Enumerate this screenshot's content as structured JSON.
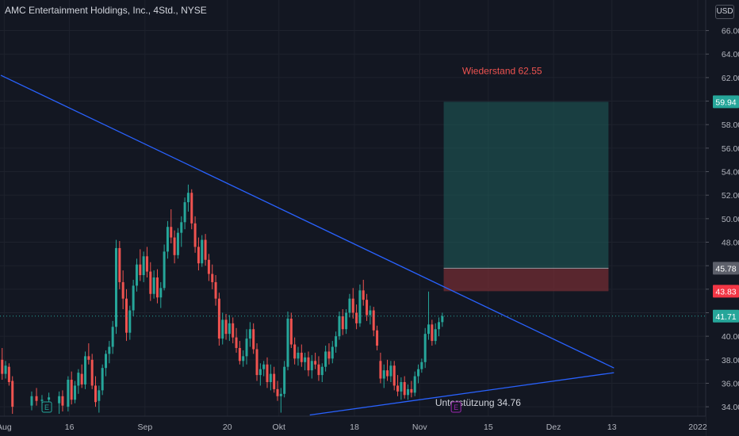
{
  "header": {
    "title": "AMC Entertainment Holdings, Inc., 4Std., NYSE",
    "currency": "USD"
  },
  "colors": {
    "up": "#26a69a",
    "down": "#ef5350",
    "trend": "#2962ff",
    "profit": "#1f5f5b",
    "loss": "#6b2a32"
  },
  "chart_data": {
    "type": "candlestick",
    "yaxis": {
      "ticks": [
        34,
        36,
        38,
        40,
        42,
        44,
        46,
        48,
        50,
        52,
        54,
        56,
        58,
        60,
        62,
        64,
        66
      ],
      "range": [
        33.2,
        68.6
      ]
    },
    "xaxis": {
      "range": [
        0,
        100
      ],
      "labels": [
        {
          "t": 0.5,
          "label": "Aug"
        },
        {
          "t": 10,
          "label": "16"
        },
        {
          "t": 21,
          "label": "Sep"
        },
        {
          "t": 33,
          "label": "20"
        },
        {
          "t": 40.5,
          "label": "Okt"
        },
        {
          "t": 51.5,
          "label": "18"
        },
        {
          "t": 61,
          "label": "Nov"
        },
        {
          "t": 71,
          "label": "15"
        },
        {
          "t": 80.5,
          "label": "Dez"
        },
        {
          "t": 89,
          "label": "13"
        },
        {
          "t": 101.5,
          "label": "2022"
        }
      ]
    },
    "price_badges": [
      {
        "value": 59.94,
        "label": "59.94",
        "kind": "profit"
      },
      {
        "value": 45.78,
        "label": "45.78",
        "kind": "entry"
      },
      {
        "value": 43.83,
        "label": "43.83",
        "kind": "stop"
      },
      {
        "value": 41.71,
        "label": "41.71",
        "kind": "last"
      }
    ],
    "annotations": [
      {
        "text": "Wiederstand 62.55",
        "t": 73,
        "y": 62.55,
        "color": "#ef5350"
      },
      {
        "text": "Unterstützung 34.76",
        "t": 69.5,
        "y": 34.35,
        "color": "#d1d4dc"
      }
    ],
    "trendlines": [
      {
        "points": [
          [
            0,
            62.2
          ],
          [
            89.3,
            37.3
          ]
        ]
      },
      {
        "points": [
          [
            45,
            33.3
          ],
          [
            89.3,
            36.9
          ]
        ]
      }
    ],
    "position_box": {
      "t_start": 64.5,
      "t_end": 88.5,
      "target": 59.94,
      "entry": 45.78,
      "stop": 43.83
    },
    "events": [
      {
        "t": 6.7,
        "label": "E",
        "color": "#26a69a"
      },
      {
        "t": 66.3,
        "label": "E",
        "color": "#9c27b0"
      }
    ],
    "candles": [
      [
        0.2,
        38.0,
        39.0,
        36.3,
        36.8
      ],
      [
        0.7,
        36.8,
        37.9,
        36.4,
        37.5
      ],
      [
        1.2,
        37.4,
        37.7,
        35.8,
        36.1
      ],
      [
        1.7,
        36.2,
        36.6,
        33.4,
        34.0
      ],
      [
        4.5,
        34.1,
        35.3,
        33.7,
        34.9
      ],
      [
        5.2,
        34.9,
        35.6,
        34.1,
        34.5
      ],
      [
        6.0,
        34.5,
        35.0,
        33.8,
        34.6
      ],
      [
        7.0,
        34.6,
        35.2,
        34.2,
        34.8
      ],
      [
        8.5,
        34.3,
        35.3,
        33.4,
        34.9
      ],
      [
        9.0,
        34.9,
        35.4,
        33.6,
        34.1
      ],
      [
        9.8,
        34.0,
        36.6,
        33.6,
        36.3
      ],
      [
        10.3,
        36.3,
        37.0,
        34.2,
        34.6
      ],
      [
        10.8,
        34.6,
        36.2,
        34.3,
        35.8
      ],
      [
        11.3,
        35.8,
        37.2,
        35.1,
        36.9
      ],
      [
        11.8,
        36.8,
        37.6,
        35.6,
        35.9
      ],
      [
        12.3,
        35.9,
        38.7,
        35.5,
        38.3
      ],
      [
        12.8,
        38.3,
        39.4,
        37.6,
        38.0
      ],
      [
        13.3,
        38.0,
        38.5,
        35.5,
        35.8
      ],
      [
        13.8,
        35.8,
        36.6,
        34.0,
        34.4
      ],
      [
        14.3,
        34.5,
        35.8,
        33.5,
        35.4
      ],
      [
        14.8,
        35.4,
        37.6,
        35.0,
        37.3
      ],
      [
        15.3,
        37.3,
        38.8,
        36.6,
        38.5
      ],
      [
        15.8,
        38.5,
        39.6,
        37.7,
        39.1
      ],
      [
        16.3,
        39.1,
        41.3,
        38.5,
        40.8
      ],
      [
        16.8,
        40.8,
        48.2,
        40.2,
        47.5
      ],
      [
        17.3,
        47.5,
        48.1,
        44.0,
        44.6
      ],
      [
        17.8,
        44.6,
        45.6,
        42.3,
        43.2
      ],
      [
        18.3,
        43.2,
        44.0,
        39.6,
        40.3
      ],
      [
        18.8,
        40.3,
        42.6,
        39.7,
        42.2
      ],
      [
        19.3,
        42.2,
        44.8,
        41.7,
        44.3
      ],
      [
        19.8,
        44.3,
        46.6,
        43.8,
        46.1
      ],
      [
        20.3,
        46.1,
        47.4,
        44.7,
        45.2
      ],
      [
        20.8,
        45.2,
        47.2,
        44.6,
        46.8
      ],
      [
        21.3,
        46.8,
        47.6,
        45.0,
        45.5
      ],
      [
        21.8,
        45.5,
        46.3,
        43.0,
        43.6
      ],
      [
        22.3,
        43.6,
        45.6,
        43.2,
        45.0
      ],
      [
        22.8,
        45.0,
        45.7,
        42.8,
        43.3
      ],
      [
        23.3,
        43.3,
        44.6,
        42.4,
        44.1
      ],
      [
        23.8,
        44.1,
        47.8,
        43.9,
        47.2
      ],
      [
        24.3,
        47.2,
        49.8,
        46.6,
        49.3
      ],
      [
        24.8,
        49.3,
        50.8,
        47.9,
        48.4
      ],
      [
        25.3,
        48.4,
        49.0,
        46.2,
        46.9
      ],
      [
        25.8,
        46.9,
        49.2,
        46.6,
        48.8
      ],
      [
        26.3,
        48.8,
        50.2,
        47.6,
        49.7
      ],
      [
        26.8,
        49.7,
        51.8,
        49.1,
        51.4
      ],
      [
        27.3,
        51.4,
        52.9,
        50.6,
        52.2
      ],
      [
        27.8,
        52.2,
        52.5,
        49.1,
        49.6
      ],
      [
        28.3,
        49.6,
        50.2,
        47.1,
        47.6
      ],
      [
        28.8,
        47.6,
        48.4,
        45.6,
        46.2
      ],
      [
        29.3,
        46.2,
        48.6,
        45.9,
        48.2
      ],
      [
        29.8,
        48.2,
        48.7,
        46.0,
        46.5
      ],
      [
        30.3,
        46.5,
        47.0,
        44.7,
        45.3
      ],
      [
        30.8,
        45.3,
        46.1,
        44.0,
        44.6
      ],
      [
        31.3,
        44.6,
        45.2,
        42.6,
        43.2
      ],
      [
        31.8,
        43.2,
        43.7,
        39.2,
        39.8
      ],
      [
        32.3,
        39.8,
        42.0,
        39.3,
        41.4
      ],
      [
        32.8,
        41.4,
        41.9,
        39.7,
        40.2
      ],
      [
        33.3,
        40.2,
        41.8,
        39.6,
        41.1
      ],
      [
        33.8,
        41.1,
        41.6,
        39.4,
        39.9
      ],
      [
        34.3,
        39.9,
        40.7,
        38.6,
        39.0
      ],
      [
        34.8,
        39.0,
        39.6,
        37.6,
        37.9
      ],
      [
        35.3,
        37.9,
        38.8,
        37.4,
        38.3
      ],
      [
        35.8,
        38.3,
        40.6,
        37.6,
        39.8
      ],
      [
        36.3,
        39.8,
        41.2,
        39.1,
        40.6
      ],
      [
        36.8,
        40.6,
        41.1,
        38.5,
        38.9
      ],
      [
        37.3,
        38.9,
        39.4,
        36.2,
        36.7
      ],
      [
        37.8,
        36.7,
        37.7,
        35.8,
        37.2
      ],
      [
        38.3,
        37.2,
        37.9,
        36.6,
        37.6
      ],
      [
        38.8,
        37.6,
        38.2,
        35.6,
        36.1
      ],
      [
        39.3,
        36.1,
        37.6,
        35.4,
        36.8
      ],
      [
        39.8,
        36.8,
        37.4,
        35.2,
        35.5
      ],
      [
        40.3,
        35.5,
        36.2,
        34.5,
        34.9
      ],
      [
        40.8,
        34.9,
        35.6,
        33.5,
        35.1
      ],
      [
        41.3,
        35.1,
        37.9,
        34.8,
        37.4
      ],
      [
        41.8,
        37.4,
        42.1,
        37.1,
        41.5
      ],
      [
        42.3,
        41.5,
        42.0,
        39.0,
        39.3
      ],
      [
        42.8,
        39.3,
        39.9,
        37.6,
        38.1
      ],
      [
        43.3,
        38.1,
        39.1,
        37.5,
        38.6
      ],
      [
        43.8,
        38.6,
        39.3,
        37.4,
        37.8
      ],
      [
        44.3,
        37.8,
        38.6,
        37.1,
        38.2
      ],
      [
        44.8,
        38.2,
        38.7,
        36.6,
        37.1
      ],
      [
        45.3,
        37.1,
        38.4,
        36.4,
        37.9
      ],
      [
        45.8,
        37.9,
        38.6,
        37.2,
        37.6
      ],
      [
        46.3,
        37.6,
        38.3,
        36.2,
        36.7
      ],
      [
        46.8,
        36.7,
        37.7,
        36.1,
        37.4
      ],
      [
        47.3,
        37.4,
        39.2,
        37.0,
        38.7
      ],
      [
        47.8,
        38.7,
        39.4,
        37.6,
        38.1
      ],
      [
        48.3,
        38.1,
        39.6,
        37.7,
        39.1
      ],
      [
        48.8,
        39.1,
        40.4,
        38.6,
        40.0
      ],
      [
        49.3,
        40.0,
        42.1,
        39.7,
        41.7
      ],
      [
        49.8,
        41.7,
        42.3,
        40.1,
        40.6
      ],
      [
        50.3,
        40.6,
        42.3,
        40.2,
        42.0
      ],
      [
        50.8,
        42.0,
        43.6,
        41.6,
        43.2
      ],
      [
        51.3,
        43.2,
        44.1,
        41.5,
        42.0
      ],
      [
        51.8,
        42.0,
        42.7,
        40.6,
        41.1
      ],
      [
        52.3,
        41.1,
        44.4,
        40.8,
        43.9
      ],
      [
        52.8,
        43.9,
        44.8,
        42.6,
        43.1
      ],
      [
        53.3,
        43.1,
        43.6,
        41.3,
        41.8
      ],
      [
        53.8,
        41.8,
        42.6,
        41.0,
        42.2
      ],
      [
        54.3,
        42.2,
        42.5,
        40.0,
        40.5
      ],
      [
        54.8,
        40.5,
        40.9,
        38.8,
        39.2
      ],
      [
        55.3,
        37.9,
        38.6,
        36.0,
        36.4
      ],
      [
        55.8,
        36.4,
        37.6,
        35.6,
        37.1
      ],
      [
        56.3,
        37.1,
        38.0,
        36.2,
        36.6
      ],
      [
        56.8,
        36.6,
        37.9,
        36.1,
        37.5
      ],
      [
        57.3,
        37.5,
        37.9,
        35.4,
        35.8
      ],
      [
        57.8,
        35.8,
        36.7,
        34.9,
        35.3
      ],
      [
        58.3,
        35.3,
        36.5,
        34.6,
        36.1
      ],
      [
        58.8,
        36.1,
        36.6,
        34.7,
        35.0
      ],
      [
        59.3,
        35.0,
        35.9,
        34.6,
        35.5
      ],
      [
        59.8,
        35.5,
        36.2,
        34.8,
        35.2
      ],
      [
        60.3,
        35.2,
        37.0,
        34.9,
        36.6
      ],
      [
        60.8,
        36.6,
        37.6,
        36.0,
        37.2
      ],
      [
        61.3,
        37.2,
        38.1,
        36.9,
        37.8
      ],
      [
        61.8,
        37.8,
        40.7,
        37.3,
        40.2
      ],
      [
        62.3,
        40.2,
        43.8,
        39.7,
        41.0
      ],
      [
        62.8,
        41.0,
        41.4,
        39.2,
        39.6
      ],
      [
        63.3,
        39.6,
        41.1,
        39.3,
        40.6
      ],
      [
        63.8,
        40.6,
        41.6,
        40.0,
        41.2
      ],
      [
        64.3,
        41.2,
        42.0,
        40.8,
        41.71
      ]
    ]
  }
}
